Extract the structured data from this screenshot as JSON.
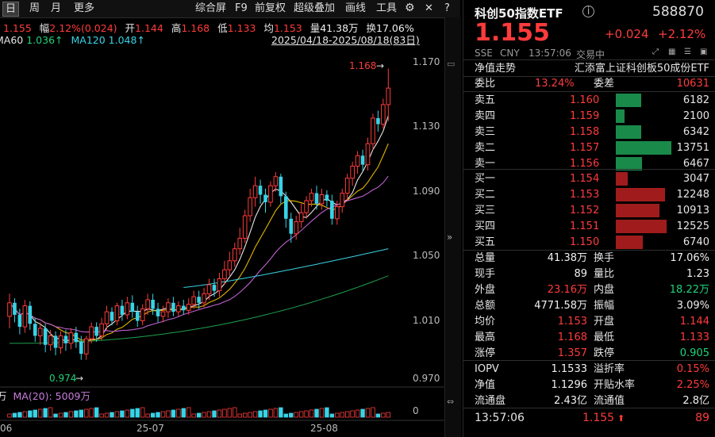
{
  "toolbar": {
    "period_day": "日",
    "period_week": "周",
    "period_month": "月",
    "more": "更多",
    "fullscreen": "综合屏",
    "f9": "F9",
    "fq": "前复权",
    "overlay": "超级叠加",
    "draw": "画线",
    "tools": "工具"
  },
  "info_line1": {
    "price_label": "收",
    "price": "1.155",
    "change_label": "幅",
    "change": "2.12%(0.024)",
    "open_label": "开",
    "open": "1.144",
    "high_label": "高",
    "high": "1.168",
    "low_label": "低",
    "low": "1.133",
    "avg_label": "均",
    "avg": "1.153",
    "vol_label": "量",
    "vol": "41.38万",
    "turn_label": "换",
    "turn": "17.06%"
  },
  "info_line2": {
    "ma60_label": "MA60",
    "ma60": "1.036↑",
    "ma120_label": "MA120",
    "ma120": "1.048↑",
    "range": "2025/04/18-2025/08/18(83日)"
  },
  "chart_data": {
    "type": "candlestick",
    "y_ticks": [
      "1.170",
      "1.130",
      "1.090",
      "1.050",
      "1.010",
      "0.970"
    ],
    "ylim": [
      0.958,
      1.182
    ],
    "x_ticks": [
      "06",
      "25-07",
      "25-08"
    ],
    "high_annotation": "1.168",
    "low_annotation": "0.974",
    "candles": [
      [
        1.003,
        1.012,
        0.995,
        1.018
      ],
      [
        1.012,
        1.004,
        0.999,
        1.015
      ],
      [
        1.004,
        0.996,
        0.991,
        1.008
      ],
      [
        0.996,
        1.01,
        0.992,
        1.014
      ],
      [
        1.01,
        0.998,
        0.994,
        1.013
      ],
      [
        0.998,
        0.99,
        0.986,
        1.002
      ],
      [
        0.99,
        0.995,
        0.984,
        0.999
      ],
      [
        0.995,
        0.984,
        0.979,
        0.998
      ],
      [
        0.984,
        0.99,
        0.98,
        0.994
      ],
      [
        0.99,
        0.982,
        0.977,
        0.993
      ],
      [
        0.982,
        0.99,
        0.978,
        0.993
      ],
      [
        0.99,
        0.985,
        0.98,
        0.994
      ],
      [
        0.985,
        0.992,
        0.981,
        0.995
      ],
      [
        0.992,
        0.986,
        0.982,
        0.996
      ],
      [
        0.986,
        0.978,
        0.974,
        0.99
      ],
      [
        0.978,
        0.988,
        0.974,
        0.99
      ],
      [
        0.988,
        0.996,
        0.985,
        0.999
      ],
      [
        0.996,
        0.99,
        0.986,
        0.999
      ],
      [
        0.99,
        0.998,
        0.987,
        1.002
      ],
      [
        0.998,
        1.006,
        0.994,
        1.01
      ],
      [
        1.006,
        1.0,
        0.997,
        1.009
      ],
      [
        1.0,
        1.01,
        0.997,
        1.012
      ],
      [
        1.01,
        1.004,
        1.0,
        1.014
      ],
      [
        1.004,
        1.012,
        1.001,
        1.016
      ],
      [
        1.012,
        1.006,
        1.002,
        1.017
      ],
      [
        1.006,
        1.0,
        0.996,
        1.01
      ],
      [
        1.0,
        1.008,
        0.997,
        1.011
      ],
      [
        1.008,
        1.014,
        1.004,
        1.018
      ],
      [
        1.014,
        1.008,
        1.004,
        1.018
      ],
      [
        1.008,
        1.003,
        0.999,
        1.012
      ],
      [
        1.003,
        1.006,
        0.999,
        1.01
      ],
      [
        1.006,
        1.012,
        1.002,
        1.015
      ],
      [
        1.012,
        1.006,
        1.003,
        1.016
      ],
      [
        1.006,
        1.01,
        1.003,
        1.013
      ],
      [
        1.01,
        1.007,
        1.004,
        1.014
      ],
      [
        1.007,
        1.011,
        1.004,
        1.015
      ],
      [
        1.011,
        1.016,
        1.008,
        1.02
      ],
      [
        1.016,
        1.012,
        1.008,
        1.02
      ],
      [
        1.012,
        1.018,
        1.009,
        1.022
      ],
      [
        1.018,
        1.024,
        1.014,
        1.028
      ],
      [
        1.024,
        1.02,
        1.016,
        1.028
      ],
      [
        1.02,
        1.028,
        1.016,
        1.032
      ],
      [
        1.028,
        1.034,
        1.024,
        1.04
      ],
      [
        1.034,
        1.04,
        1.03,
        1.046
      ],
      [
        1.04,
        1.048,
        1.036,
        1.052
      ],
      [
        1.048,
        1.055,
        1.044,
        1.062
      ],
      [
        1.055,
        1.07,
        1.052,
        1.074
      ],
      [
        1.07,
        1.082,
        1.066,
        1.088
      ],
      [
        1.082,
        1.09,
        1.076,
        1.096
      ],
      [
        1.09,
        1.084,
        1.078,
        1.094
      ],
      [
        1.084,
        1.079,
        1.072,
        1.088
      ],
      [
        1.079,
        1.09,
        1.076,
        1.093
      ],
      [
        1.09,
        1.096,
        1.086,
        1.099
      ],
      [
        1.096,
        1.083,
        1.078,
        1.098
      ],
      [
        1.083,
        1.068,
        1.062,
        1.086
      ],
      [
        1.068,
        1.058,
        1.052,
        1.072
      ],
      [
        1.058,
        1.066,
        1.054,
        1.07
      ],
      [
        1.066,
        1.072,
        1.062,
        1.078
      ],
      [
        1.072,
        1.08,
        1.068,
        1.083
      ],
      [
        1.08,
        1.085,
        1.076,
        1.088
      ],
      [
        1.085,
        1.078,
        1.074,
        1.09
      ],
      [
        1.078,
        1.084,
        1.074,
        1.088
      ],
      [
        1.084,
        1.08,
        1.076,
        1.087
      ],
      [
        1.08,
        1.068,
        1.064,
        1.084
      ],
      [
        1.068,
        1.076,
        1.064,
        1.08
      ],
      [
        1.076,
        1.085,
        1.072,
        1.088
      ],
      [
        1.085,
        1.095,
        1.08,
        1.098
      ],
      [
        1.095,
        1.103,
        1.09,
        1.106
      ],
      [
        1.103,
        1.11,
        1.098,
        1.113
      ],
      [
        1.11,
        1.104,
        1.1,
        1.114
      ],
      [
        1.104,
        1.118,
        1.1,
        1.122
      ],
      [
        1.118,
        1.135,
        1.114,
        1.138
      ],
      [
        1.135,
        1.131,
        1.126,
        1.14
      ],
      [
        1.131,
        1.144,
        1.128,
        1.148
      ],
      [
        1.144,
        1.155,
        1.133,
        1.168
      ]
    ]
  },
  "volume": {
    "label_prefix": "万",
    "ma_label": "MA(20): 5009万",
    "zero_label": "0"
  },
  "quote": {
    "name": "科创50指数ETF",
    "code": "588870",
    "price": "1.155",
    "change": "+0.024",
    "change_pct": "+2.12%",
    "market": "SSE",
    "currency": "CNY",
    "time": "13:57:06",
    "status": "交易中",
    "trend_label": "净值走势",
    "fund_name": "汇添富上证科创板50成份ETF",
    "weibi_label": "委比",
    "weibi": "13.24%",
    "weicha_label": "委差",
    "weicha": "10631"
  },
  "asks": [
    {
      "label": "卖五",
      "price": "1.160",
      "vol": "6182",
      "frac": 0.45
    },
    {
      "label": "卖四",
      "price": "1.159",
      "vol": "2100",
      "frac": 0.15
    },
    {
      "label": "卖三",
      "price": "1.158",
      "vol": "6342",
      "frac": 0.46
    },
    {
      "label": "卖二",
      "price": "1.157",
      "vol": "13751",
      "frac": 1.0
    },
    {
      "label": "卖一",
      "price": "1.156",
      "vol": "6467",
      "frac": 0.47
    }
  ],
  "bids": [
    {
      "label": "买一",
      "price": "1.154",
      "vol": "3047",
      "frac": 0.22
    },
    {
      "label": "买二",
      "price": "1.153",
      "vol": "12248",
      "frac": 0.89
    },
    {
      "label": "买三",
      "price": "1.152",
      "vol": "10913",
      "frac": 0.79
    },
    {
      "label": "买四",
      "price": "1.151",
      "vol": "12525",
      "frac": 0.91
    },
    {
      "label": "买五",
      "price": "1.150",
      "vol": "6740",
      "frac": 0.49
    }
  ],
  "stats": [
    {
      "l1": "总量",
      "v1": "41.38万",
      "c1": "white",
      "l2": "换手",
      "v2": "17.06%",
      "c2": "white"
    },
    {
      "l1": "现手",
      "v1": "89",
      "c1": "white",
      "l2": "量比",
      "v2": "1.23",
      "c2": "white"
    },
    {
      "l1": "外盘",
      "v1": "23.16万",
      "c1": "red",
      "l2": "内盘",
      "v2": "18.22万",
      "c2": "green"
    },
    {
      "l1": "总额",
      "v1": "4771.58万",
      "c1": "white",
      "l2": "振幅",
      "v2": "3.09%",
      "c2": "white"
    },
    {
      "l1": "均价",
      "v1": "1.153",
      "c1": "red",
      "l2": "开盘",
      "v2": "1.144",
      "c2": "red"
    },
    {
      "l1": "最高",
      "v1": "1.168",
      "c1": "red",
      "l2": "最低",
      "v2": "1.133",
      "c2": "red"
    },
    {
      "l1": "涨停",
      "v1": "1.357",
      "c1": "red",
      "l2": "跌停",
      "v2": "0.905",
      "c2": "green"
    }
  ],
  "stats2": [
    {
      "l1": "IOPV",
      "v1": "1.1533",
      "c1": "white",
      "l2": "溢折率",
      "v2": "0.15%",
      "c2": "red"
    },
    {
      "l1": "净值",
      "v1": "1.1296",
      "c1": "white",
      "l2": "开贴水率",
      "v2": "2.25%",
      "c2": "red"
    },
    {
      "l1": "流通盘",
      "v1": "2.43亿",
      "c1": "white",
      "l2": "流通值",
      "v2": "2.8亿",
      "c2": "white"
    }
  ],
  "tick": {
    "time": "13:57:06",
    "price": "1.155",
    "vol": "89"
  },
  "colors": {
    "up": "#ff3b3b",
    "down": "#1fd37a",
    "cyan": "#38d3e6",
    "ask_bar": "#1a8a4a",
    "bid_bar": "#a01c1c"
  }
}
